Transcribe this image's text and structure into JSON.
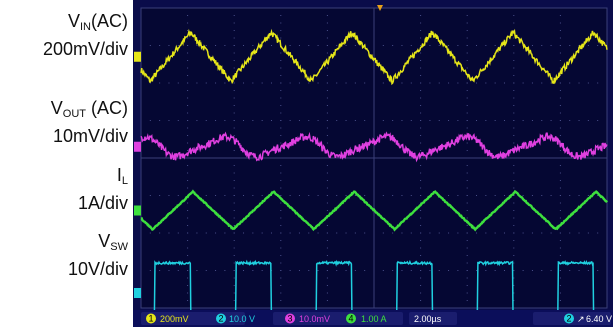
{
  "chart_data": {
    "type": "line",
    "time_per_div": "2.00µs",
    "channels": [
      {
        "id": "1",
        "label_main": "V",
        "label_sub": "IN",
        "label_suffix": "(AC)",
        "scale": "200mV/div",
        "color": "#e6e619",
        "waveform": "triangle",
        "period_div": 1.73,
        "phase_div": 0.2,
        "center_div": 1.3,
        "amplitude_div": 0.65
      },
      {
        "id": "3",
        "label_main": "V",
        "label_sub": "OUT",
        "label_suffix": " (AC)",
        "scale": "10mV/div",
        "color": "#e040e0",
        "waveform": "ripple",
        "period_div": 1.73,
        "phase_div": 0.85,
        "center_div": 3.7,
        "amplitude_div": 0.4
      },
      {
        "id": "4",
        "label_main": "I",
        "label_sub": "L",
        "label_suffix": "",
        "scale": "1A/div",
        "color": "#3ee03e",
        "waveform": "triangle",
        "period_div": 1.73,
        "phase_div": 0.25,
        "center_div": 5.4,
        "amplitude_div": 0.5
      },
      {
        "id": "2",
        "label_main": "V",
        "label_sub": "SW",
        "label_suffix": "",
        "scale": "10V/div",
        "color": "#20d0e0",
        "waveform": "square",
        "period_div": 1.73,
        "phase_div": 0.3,
        "center_div": 7.6,
        "amplitude_div": 0.8,
        "duty": 0.44
      }
    ],
    "status_bar": {
      "ch1": "1",
      "ch1_scale": "200mV",
      "ch2": "2",
      "ch2_scale": "10.0 V",
      "ch3": "3",
      "ch3_scale": "10.0mV",
      "ch4": "4",
      "ch4_scale": "1.00 A",
      "timebase": "2.00µs",
      "trig_ch": "2",
      "trig_level": "6.40 V"
    },
    "grid": true
  }
}
